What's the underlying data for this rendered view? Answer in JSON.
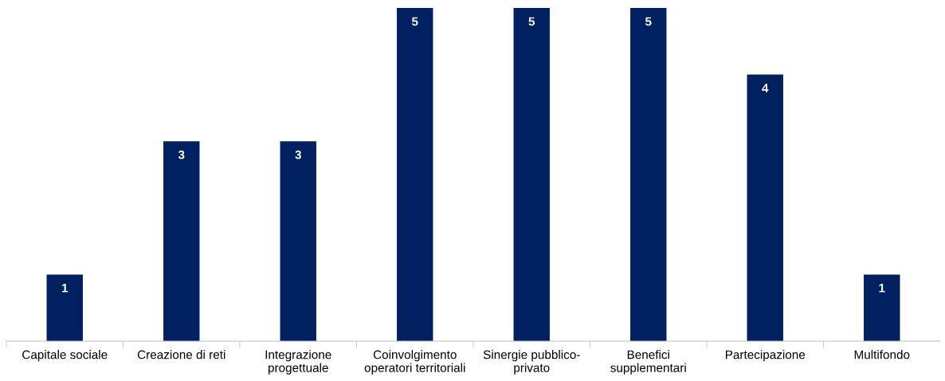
{
  "chart_data": {
    "type": "bar",
    "categories": [
      "Capitale sociale",
      "Creazione di reti",
      "Integrazione\nprogettuale",
      "Coinvolgimento\noperatori territoriali",
      "Sinergie pubblico-\nprivato",
      "Benefici\nsupplementari",
      "Partecipazione",
      "Multifondo"
    ],
    "values": [
      1,
      3,
      3,
      5,
      5,
      5,
      4,
      1
    ],
    "color": "#002060",
    "data_labels": true,
    "grid": false,
    "legend": false
  }
}
